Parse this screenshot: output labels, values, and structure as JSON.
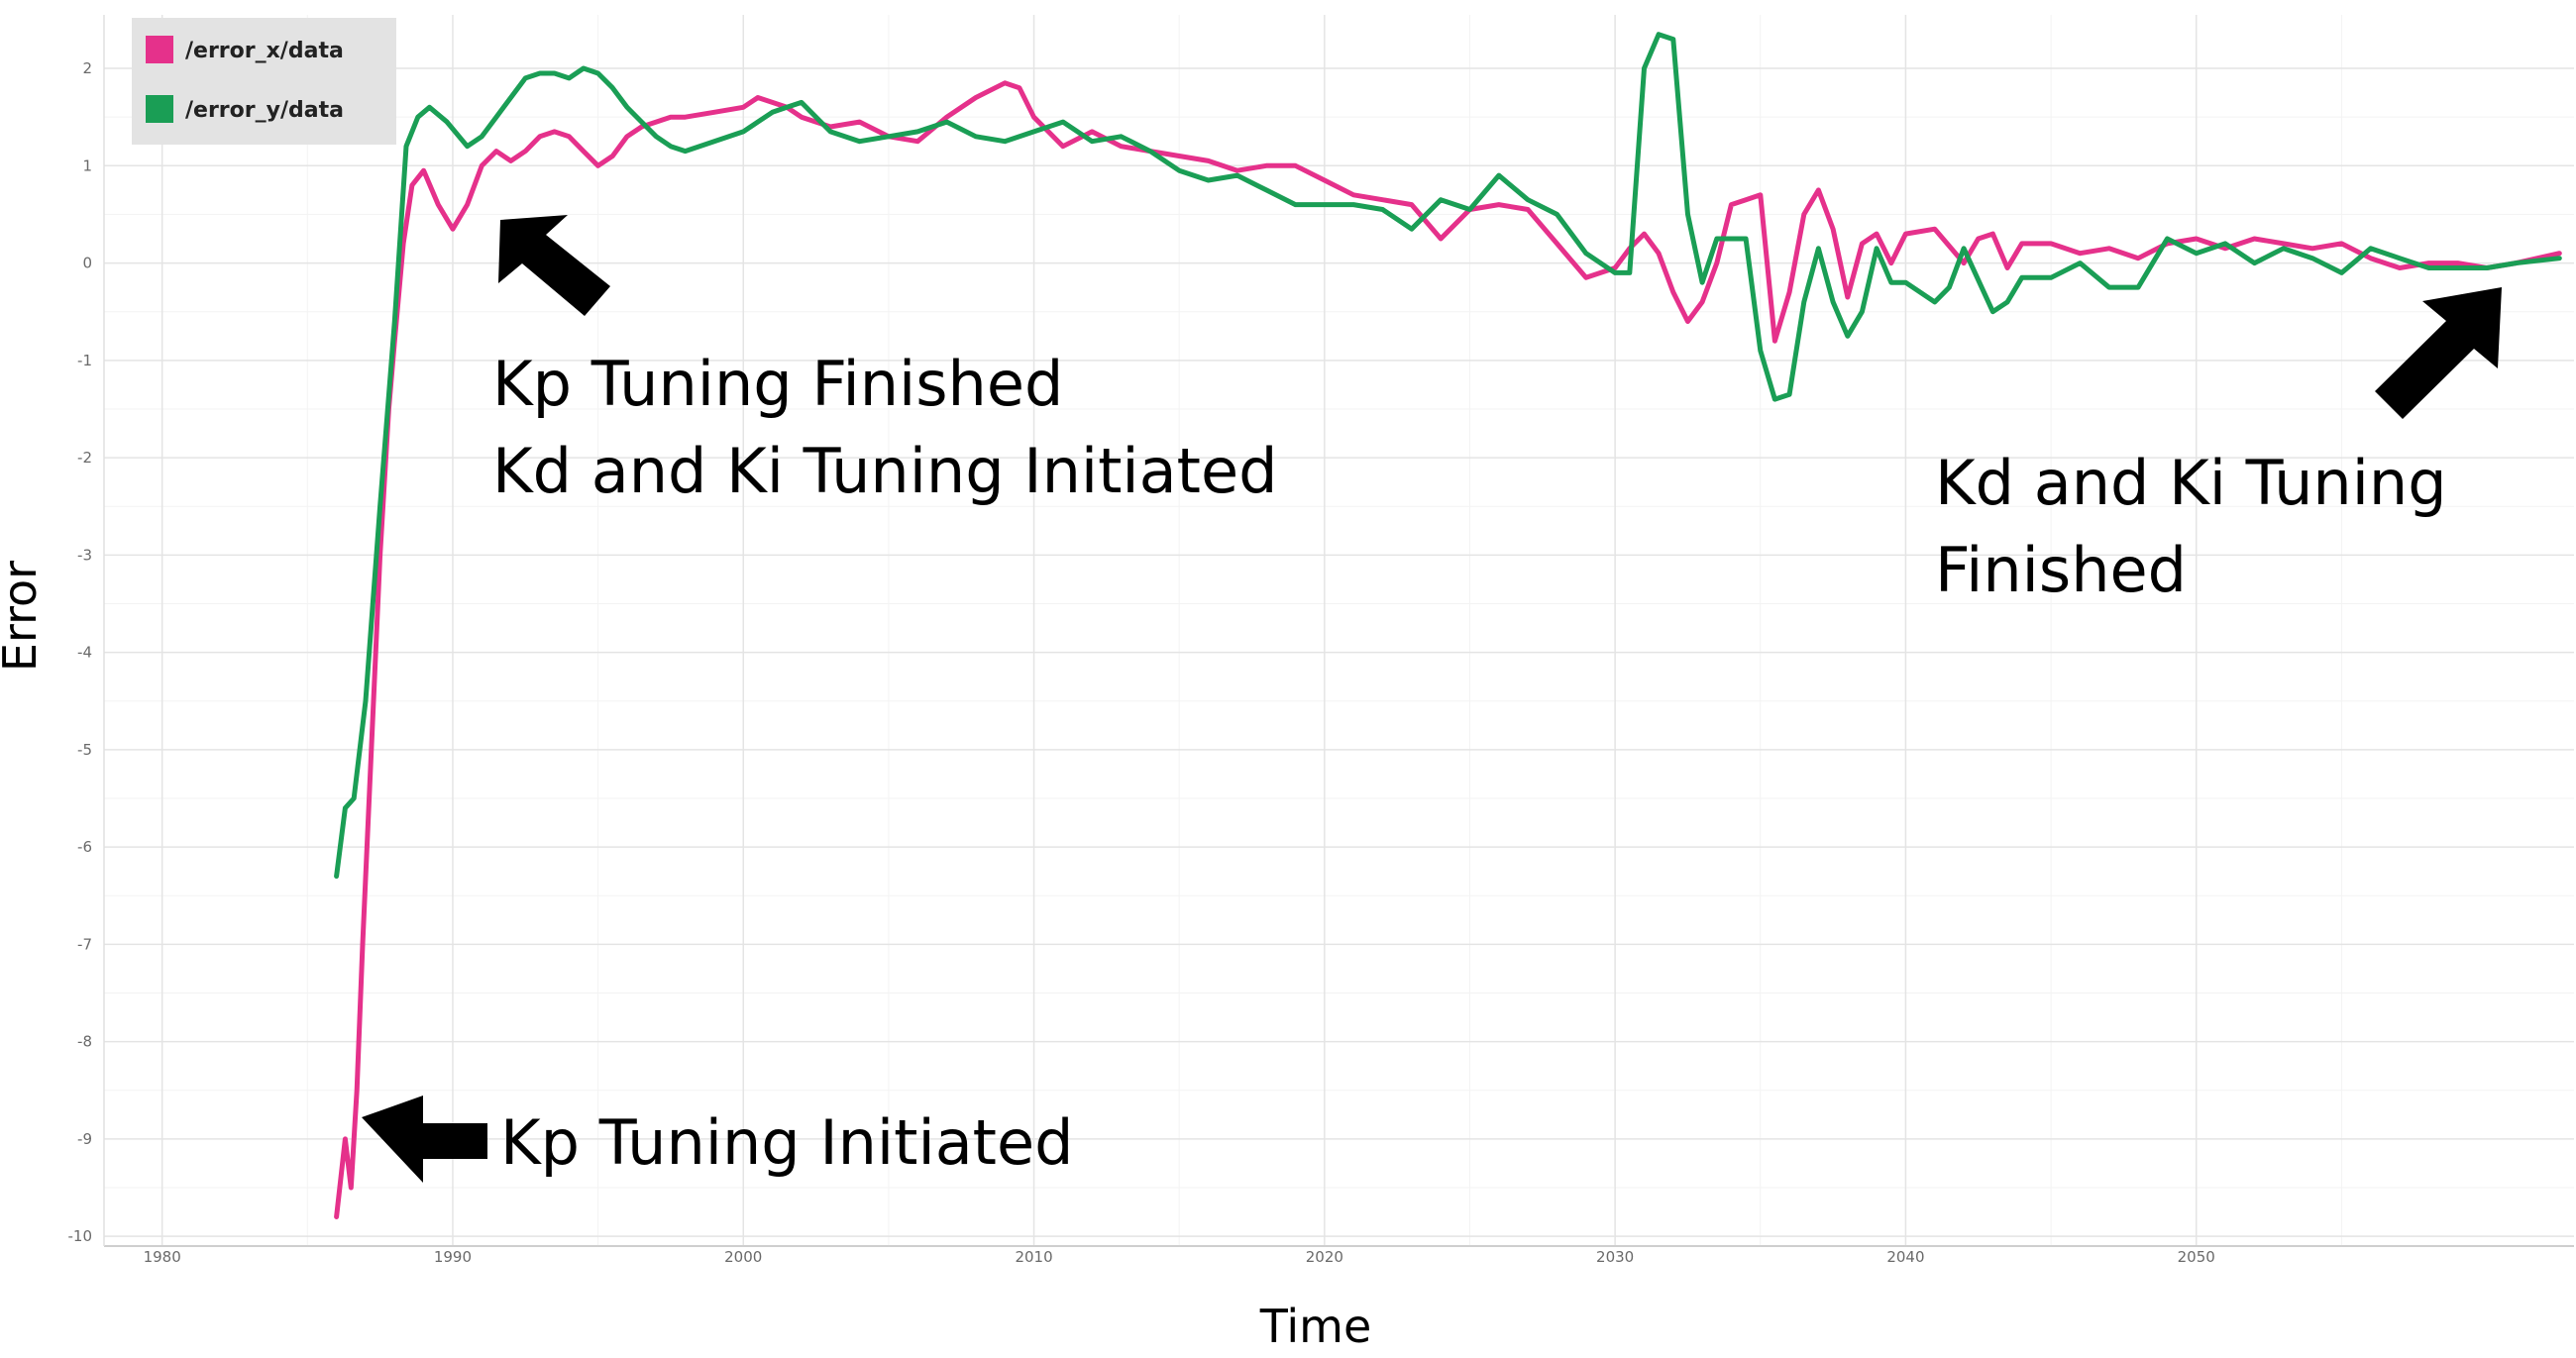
{
  "chart_data": {
    "type": "line",
    "xlabel": "Time",
    "ylabel": "Error",
    "xlim": [
      1978,
      2063
    ],
    "ylim": [
      -10.1,
      2.55
    ],
    "x_ticks": [
      1980,
      1990,
      2000,
      2010,
      2020,
      2030,
      2040,
      2050
    ],
    "y_ticks": [
      2,
      1,
      0,
      -1,
      -2,
      -3,
      -4,
      -5,
      -6,
      -7,
      -8,
      -9,
      -10
    ],
    "grid": true,
    "legend_position": "top-left",
    "series": [
      {
        "name": "/error_x/data",
        "color": "#e5318b",
        "x": [
          1986.0,
          1986.3,
          1986.5,
          1986.7,
          1986.9,
          1987.2,
          1987.5,
          1987.8,
          1988.0,
          1988.3,
          1988.6,
          1989.0,
          1989.5,
          1990.0,
          1990.5,
          1991.0,
          1991.5,
          1992.0,
          1992.5,
          1993.0,
          1993.5,
          1994.0,
          1994.5,
          1995.0,
          1995.5,
          1996.0,
          1996.5,
          1997.0,
          1997.5,
          1998.0,
          1999.0,
          2000.0,
          2000.5,
          2001.0,
          2001.5,
          2002.0,
          2003.0,
          2004.0,
          2005.0,
          2006.0,
          2007.0,
          2008.0,
          2009.0,
          2009.5,
          2010.0,
          2010.5,
          2011.0,
          2012.0,
          2013.0,
          2014.0,
          2015.0,
          2016.0,
          2017.0,
          2018.0,
          2019.0,
          2020.0,
          2021.0,
          2022.0,
          2023.0,
          2024.0,
          2025.0,
          2026.0,
          2027.0,
          2028.0,
          2029.0,
          2030.0,
          2030.5,
          2031.0,
          2031.5,
          2032.0,
          2032.5,
          2033.0,
          2033.5,
          2034.0,
          2034.5,
          2035.0,
          2035.5,
          2036.0,
          2036.5,
          2037.0,
          2037.5,
          2038.0,
          2038.5,
          2039.0,
          2039.5,
          2040.0,
          2041.0,
          2042.0,
          2042.5,
          2043.0,
          2043.5,
          2044.0,
          2045.0,
          2046.0,
          2047.0,
          2048.0,
          2049.0,
          2050.0,
          2051.0,
          2052.0,
          2053.0,
          2054.0,
          2055.0,
          2056.0,
          2057.0,
          2058.0,
          2059.0,
          2060.0,
          2061.0,
          2062.5
        ],
        "y": [
          -9.8,
          -9.0,
          -9.5,
          -8.5,
          -7.0,
          -5.0,
          -3.0,
          -1.5,
          -0.8,
          0.2,
          0.8,
          0.95,
          0.6,
          0.35,
          0.6,
          1.0,
          1.15,
          1.05,
          1.15,
          1.3,
          1.35,
          1.3,
          1.15,
          1.0,
          1.1,
          1.3,
          1.4,
          1.45,
          1.5,
          1.5,
          1.55,
          1.6,
          1.7,
          1.65,
          1.6,
          1.5,
          1.4,
          1.45,
          1.3,
          1.25,
          1.5,
          1.7,
          1.85,
          1.8,
          1.5,
          1.35,
          1.2,
          1.35,
          1.2,
          1.15,
          1.1,
          1.05,
          0.95,
          1.0,
          1.0,
          0.85,
          0.7,
          0.65,
          0.6,
          0.25,
          0.55,
          0.6,
          0.55,
          0.2,
          -0.15,
          -0.05,
          0.15,
          0.3,
          0.1,
          -0.3,
          -0.6,
          -0.4,
          0.0,
          0.6,
          0.65,
          0.7,
          -0.8,
          -0.3,
          0.5,
          0.75,
          0.35,
          -0.35,
          0.2,
          0.3,
          0.0,
          0.3,
          0.35,
          0.0,
          0.25,
          0.3,
          -0.05,
          0.2,
          0.2,
          0.1,
          0.15,
          0.05,
          0.2,
          0.25,
          0.15,
          0.25,
          0.2,
          0.15,
          0.2,
          0.05,
          -0.05,
          0.0,
          0.0,
          -0.05,
          0.0,
          0.1
        ]
      },
      {
        "name": "/error_y/data",
        "color": "#1a9e55",
        "x": [
          1986.0,
          1986.3,
          1986.6,
          1987.0,
          1987.5,
          1988.0,
          1988.4,
          1988.8,
          1989.2,
          1989.8,
          1990.5,
          1991.0,
          1991.5,
          1992.0,
          1992.5,
          1993.0,
          1993.5,
          1994.0,
          1994.5,
          1995.0,
          1995.5,
          1996.0,
          1996.5,
          1997.0,
          1997.5,
          1998.0,
          1999.0,
          2000.0,
          2000.5,
          2001.0,
          2001.5,
          2002.0,
          2003.0,
          2004.0,
          2005.0,
          2006.0,
          2007.0,
          2008.0,
          2009.0,
          2010.0,
          2011.0,
          2012.0,
          2013.0,
          2014.0,
          2015.0,
          2016.0,
          2017.0,
          2018.0,
          2019.0,
          2020.0,
          2021.0,
          2022.0,
          2023.0,
          2024.0,
          2025.0,
          2026.0,
          2027.0,
          2028.0,
          2029.0,
          2030.0,
          2030.5,
          2031.0,
          2031.5,
          2032.0,
          2032.5,
          2033.0,
          2033.5,
          2034.0,
          2034.5,
          2035.0,
          2035.5,
          2036.0,
          2036.5,
          2037.0,
          2037.5,
          2038.0,
          2038.5,
          2039.0,
          2039.5,
          2040.0,
          2041.0,
          2041.5,
          2042.0,
          2043.0,
          2043.5,
          2044.0,
          2045.0,
          2046.0,
          2047.0,
          2048.0,
          2049.0,
          2050.0,
          2051.0,
          2052.0,
          2053.0,
          2054.0,
          2055.0,
          2056.0,
          2057.0,
          2058.0,
          2059.0,
          2060.0,
          2061.0,
          2062.5
        ],
        "y": [
          -6.3,
          -5.6,
          -5.5,
          -4.5,
          -2.5,
          -0.6,
          1.2,
          1.5,
          1.6,
          1.45,
          1.2,
          1.3,
          1.5,
          1.7,
          1.9,
          1.95,
          1.95,
          1.9,
          2.0,
          1.95,
          1.8,
          1.6,
          1.45,
          1.3,
          1.2,
          1.15,
          1.25,
          1.35,
          1.45,
          1.55,
          1.6,
          1.65,
          1.35,
          1.25,
          1.3,
          1.35,
          1.45,
          1.3,
          1.25,
          1.35,
          1.45,
          1.25,
          1.3,
          1.15,
          0.95,
          0.85,
          0.9,
          0.75,
          0.6,
          0.6,
          0.6,
          0.55,
          0.35,
          0.65,
          0.55,
          0.9,
          0.65,
          0.5,
          0.1,
          -0.1,
          -0.1,
          2.0,
          2.35,
          2.3,
          0.5,
          -0.2,
          0.25,
          0.25,
          0.25,
          -0.9,
          -1.4,
          -1.35,
          -0.4,
          0.15,
          -0.4,
          -0.75,
          -0.5,
          0.15,
          -0.2,
          -0.2,
          -0.4,
          -0.25,
          0.15,
          -0.5,
          -0.4,
          -0.15,
          -0.15,
          0.0,
          -0.25,
          -0.25,
          0.25,
          0.1,
          0.2,
          0.0,
          0.15,
          0.05,
          -0.1,
          0.15,
          0.05,
          -0.05,
          -0.05,
          -0.05,
          0.0,
          0.05
        ]
      }
    ],
    "annotations": [
      {
        "id": "kp-start",
        "lines": [
          "Kp Tuning Initiated"
        ]
      },
      {
        "id": "kp-finished",
        "lines": [
          "Kp Tuning Finished",
          "Kd and Ki Tuning Initiated"
        ]
      },
      {
        "id": "kdki-finished",
        "lines": [
          "Kd and Ki Tuning",
          "Finished"
        ]
      }
    ]
  }
}
